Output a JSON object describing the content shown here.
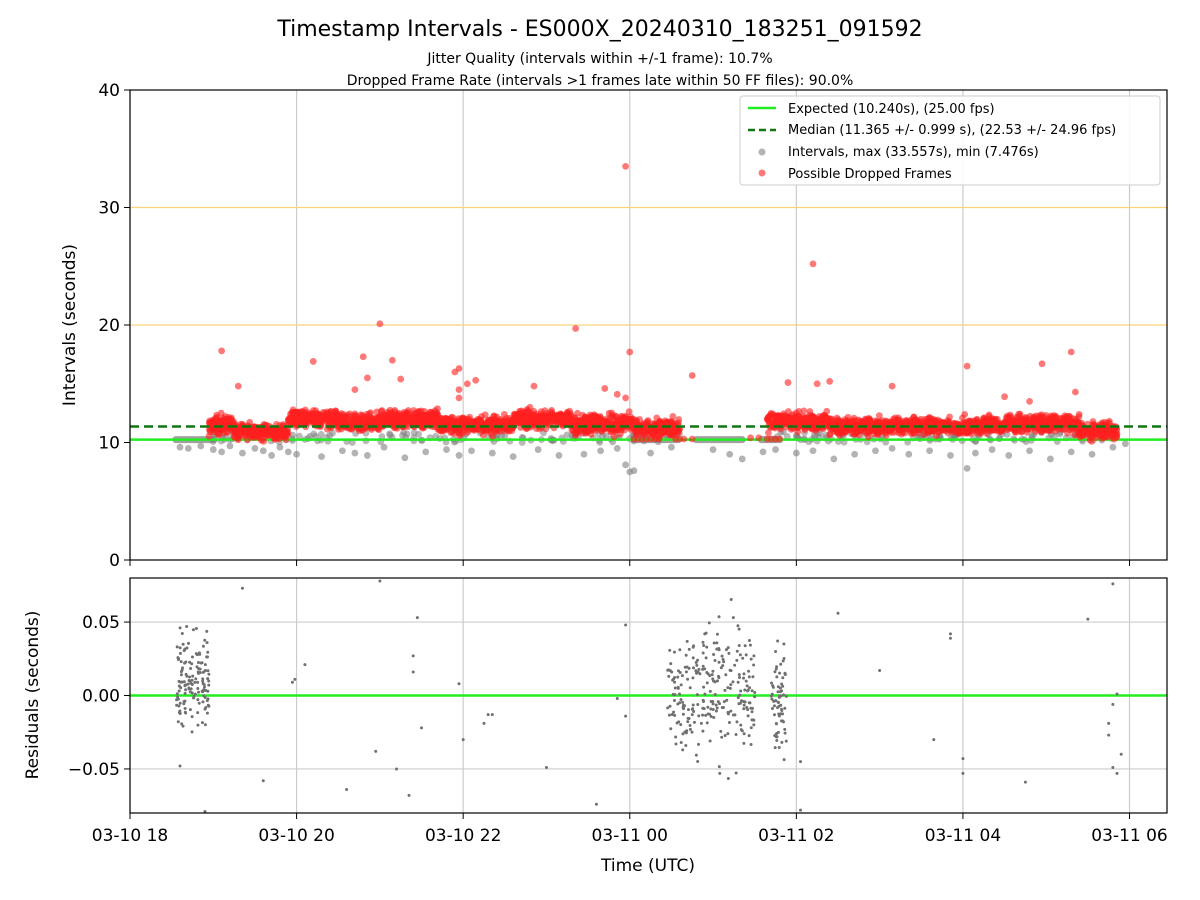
{
  "chart_data": {
    "type": "scatter",
    "title": "Timestamp Intervals - ES000X_20240310_183251_091592",
    "subtitles": [
      "Jitter Quality (intervals within +/-1 frame): 10.7%",
      "Dropped Frame Rate (intervals >1 frames late within 50 FF files): 90.0%"
    ],
    "xlabel": "Time (UTC)",
    "x_unit": "hours since 2024-03-10 18:00 UTC",
    "xlim": [
      18.0,
      30.45
    ],
    "x_ticks": [
      {
        "value": 18,
        "label": "03-10 18"
      },
      {
        "value": 20,
        "label": "03-10 20"
      },
      {
        "value": 22,
        "label": "03-10 22"
      },
      {
        "value": 24,
        "label": "03-11 00"
      },
      {
        "value": 26,
        "label": "03-11 02"
      },
      {
        "value": 28,
        "label": "03-11 04"
      },
      {
        "value": 30,
        "label": "03-11 06"
      }
    ],
    "top_panel": {
      "ylabel": "Intervals (seconds)",
      "ylim": [
        0,
        40
      ],
      "y_ticks": [
        {
          "value": 0,
          "label": "0"
        },
        {
          "value": 10,
          "label": "10"
        },
        {
          "value": 20,
          "label": "20"
        },
        {
          "value": 30,
          "label": "30"
        },
        {
          "value": 40,
          "label": "40"
        }
      ],
      "grid": "vertical",
      "reference_lines": [
        {
          "y": 20,
          "color": "#ffd27a"
        },
        {
          "y": 30,
          "color": "#ffd27a"
        }
      ],
      "expected": {
        "name": "Expected (10.240s), (25.00 fps)",
        "y": 10.24,
        "color": "#22ee22"
      },
      "median": {
        "name": "Median (11.365 +/- 0.999 s), (22.53 +/- 24.96 fps)",
        "y": 11.365,
        "color": "#117711"
      },
      "intervals": {
        "name": "Intervals, max (33.557s), min (7.476s)",
        "color": "#808080",
        "baseline_segments": [
          {
            "x_start": 18.55,
            "x_end": 18.98,
            "y": 10.24
          },
          {
            "x_start": 24.05,
            "x_end": 24.58,
            "y": 10.24
          },
          {
            "x_start": 24.8,
            "x_end": 25.35,
            "y": 10.24
          },
          {
            "x_start": 25.58,
            "x_end": 25.8,
            "y": 10.24
          }
        ],
        "outlier_points": [
          [
            18.6,
            9.6
          ],
          [
            18.7,
            9.5
          ],
          [
            18.85,
            9.7
          ],
          [
            19.0,
            9.4
          ],
          [
            19.1,
            9.2
          ],
          [
            19.2,
            9.7
          ],
          [
            19.35,
            9.1
          ],
          [
            19.5,
            9.5
          ],
          [
            19.6,
            9.3
          ],
          [
            19.7,
            8.9
          ],
          [
            19.8,
            9.6
          ],
          [
            19.9,
            9.2
          ],
          [
            20.0,
            9.0
          ],
          [
            20.3,
            8.8
          ],
          [
            20.55,
            9.3
          ],
          [
            20.7,
            9.1
          ],
          [
            20.85,
            8.9
          ],
          [
            21.05,
            9.6
          ],
          [
            21.3,
            8.7
          ],
          [
            21.55,
            9.2
          ],
          [
            21.8,
            9.4
          ],
          [
            21.95,
            8.9
          ],
          [
            22.1,
            9.3
          ],
          [
            22.35,
            9.1
          ],
          [
            22.6,
            8.8
          ],
          [
            22.9,
            9.4
          ],
          [
            23.15,
            8.9
          ],
          [
            23.45,
            9.0
          ],
          [
            23.65,
            9.3
          ],
          [
            23.85,
            9.5
          ],
          [
            23.95,
            8.1
          ],
          [
            24.0,
            7.5
          ],
          [
            24.05,
            7.6
          ],
          [
            24.25,
            9.1
          ],
          [
            24.5,
            9.6
          ],
          [
            25.0,
            9.4
          ],
          [
            25.2,
            9.0
          ],
          [
            25.35,
            8.6
          ],
          [
            25.6,
            9.2
          ],
          [
            25.75,
            9.4
          ],
          [
            26.0,
            9.1
          ],
          [
            26.2,
            9.3
          ],
          [
            26.45,
            8.6
          ],
          [
            26.7,
            9.0
          ],
          [
            26.95,
            9.3
          ],
          [
            27.15,
            9.5
          ],
          [
            27.35,
            9.0
          ],
          [
            27.6,
            9.3
          ],
          [
            27.85,
            8.9
          ],
          [
            28.05,
            7.8
          ],
          [
            28.15,
            9.1
          ],
          [
            28.35,
            9.4
          ],
          [
            28.55,
            8.9
          ],
          [
            28.8,
            9.3
          ],
          [
            29.05,
            8.6
          ],
          [
            29.3,
            9.2
          ],
          [
            29.55,
            9.0
          ],
          [
            29.8,
            9.6
          ],
          [
            29.95,
            9.9
          ]
        ]
      },
      "dropped": {
        "name": "Possible Dropped Frames",
        "color": "#ff2020",
        "band": [
          {
            "x_start": 18.95,
            "x_end": 19.25,
            "y_center": 11.5,
            "spread": 0.8
          },
          {
            "x_start": 19.25,
            "x_end": 19.9,
            "y_center": 10.9,
            "spread": 0.7
          },
          {
            "x_start": 19.9,
            "x_end": 20.5,
            "y_center": 12.0,
            "spread": 0.8
          },
          {
            "x_start": 20.5,
            "x_end": 21.0,
            "y_center": 11.7,
            "spread": 0.8
          },
          {
            "x_start": 21.0,
            "x_end": 21.7,
            "y_center": 12.0,
            "spread": 0.8
          },
          {
            "x_start": 21.7,
            "x_end": 22.6,
            "y_center": 11.5,
            "spread": 0.8
          },
          {
            "x_start": 22.6,
            "x_end": 23.3,
            "y_center": 12.0,
            "spread": 0.8
          },
          {
            "x_start": 23.3,
            "x_end": 24.05,
            "y_center": 11.6,
            "spread": 0.9
          },
          {
            "x_start": 24.05,
            "x_end": 24.6,
            "y_center": 11.2,
            "spread": 0.8
          },
          {
            "x_start": 25.65,
            "x_end": 26.4,
            "y_center": 11.8,
            "spread": 0.8
          },
          {
            "x_start": 26.4,
            "x_end": 27.4,
            "y_center": 11.4,
            "spread": 0.8
          },
          {
            "x_start": 27.4,
            "x_end": 28.5,
            "y_center": 11.4,
            "spread": 0.8
          },
          {
            "x_start": 28.5,
            "x_end": 29.4,
            "y_center": 11.6,
            "spread": 0.8
          },
          {
            "x_start": 29.4,
            "x_end": 29.85,
            "y_center": 11.0,
            "spread": 0.7
          }
        ],
        "outlier_points": [
          [
            19.1,
            17.8
          ],
          [
            19.3,
            14.8
          ],
          [
            20.2,
            16.9
          ],
          [
            20.7,
            14.5
          ],
          [
            20.8,
            17.3
          ],
          [
            20.85,
            15.5
          ],
          [
            21.15,
            17.0
          ],
          [
            21.25,
            15.4
          ],
          [
            21.0,
            20.1
          ],
          [
            21.9,
            16.0
          ],
          [
            21.95,
            16.3
          ],
          [
            21.95,
            14.5
          ],
          [
            21.95,
            13.8
          ],
          [
            22.05,
            15.0
          ],
          [
            22.15,
            15.3
          ],
          [
            22.85,
            14.8
          ],
          [
            23.35,
            19.7
          ],
          [
            23.7,
            14.6
          ],
          [
            23.85,
            14.1
          ],
          [
            23.95,
            13.8
          ],
          [
            23.95,
            33.5
          ],
          [
            24.0,
            17.7
          ],
          [
            24.75,
            15.7
          ],
          [
            25.9,
            15.1
          ],
          [
            26.2,
            25.2
          ],
          [
            26.25,
            15.0
          ],
          [
            26.4,
            15.2
          ],
          [
            27.15,
            14.8
          ],
          [
            28.05,
            16.5
          ],
          [
            28.5,
            13.9
          ],
          [
            28.8,
            13.5
          ],
          [
            28.95,
            16.7
          ],
          [
            29.3,
            17.7
          ],
          [
            29.35,
            14.3
          ]
        ],
        "isolated_low_points": [
          [
            24.05,
            10.3
          ],
          [
            24.1,
            10.3
          ],
          [
            24.15,
            10.3
          ],
          [
            24.2,
            10.3
          ],
          [
            24.25,
            10.3
          ],
          [
            24.3,
            10.3
          ],
          [
            24.35,
            10.3
          ],
          [
            24.55,
            10.3
          ],
          [
            24.6,
            10.3
          ],
          [
            24.65,
            10.3
          ],
          [
            24.75,
            10.3
          ],
          [
            25.65,
            10.3
          ],
          [
            25.7,
            10.3
          ],
          [
            25.75,
            10.3
          ],
          [
            25.8,
            10.3
          ],
          [
            25.45,
            10.4
          ],
          [
            25.55,
            10.4
          ]
        ]
      }
    },
    "bottom_panel": {
      "ylabel": "Residuals (seconds)",
      "ylim": [
        -0.08,
        0.08
      ],
      "y_ticks": [
        {
          "value": 0.05,
          "label": "0.05"
        },
        {
          "value": 0.0,
          "label": "0.00"
        },
        {
          "value": -0.05,
          "label": "−0.05"
        }
      ],
      "grid": "both",
      "zero_line_color": "#22ee22",
      "point_color": "#707070",
      "clusters": [
        {
          "x_start": 18.55,
          "x_end": 18.95,
          "y_center": 0.01,
          "spread": 0.025,
          "count": 140
        },
        {
          "x_start": 24.45,
          "x_end": 25.5,
          "y_center": 0.005,
          "spread": 0.035,
          "count": 260
        },
        {
          "x_start": 25.7,
          "x_end": 25.88,
          "y_center": 0.0,
          "spread": 0.03,
          "count": 70
        }
      ],
      "points": [
        [
          18.6,
          -0.048
        ],
        [
          18.9,
          -0.079
        ],
        [
          19.35,
          0.073
        ],
        [
          19.6,
          -0.058
        ],
        [
          19.95,
          0.009
        ],
        [
          19.98,
          0.011
        ],
        [
          20.1,
          0.021
        ],
        [
          20.6,
          -0.064
        ],
        [
          20.95,
          -0.038
        ],
        [
          21.0,
          0.078
        ],
        [
          21.2,
          -0.05
        ],
        [
          21.35,
          -0.068
        ],
        [
          21.4,
          0.027
        ],
        [
          21.4,
          0.016
        ],
        [
          21.45,
          0.053
        ],
        [
          21.5,
          -0.022
        ],
        [
          21.95,
          0.008
        ],
        [
          22.0,
          -0.03
        ],
        [
          22.25,
          -0.019
        ],
        [
          22.3,
          -0.013
        ],
        [
          22.35,
          -0.013
        ],
        [
          23.0,
          -0.049
        ],
        [
          23.6,
          -0.074
        ],
        [
          23.85,
          -0.002
        ],
        [
          23.95,
          0.048
        ],
        [
          23.95,
          -0.014
        ],
        [
          26.05,
          -0.078
        ],
        [
          26.05,
          -0.045
        ],
        [
          26.5,
          0.056
        ],
        [
          27.0,
          0.017
        ],
        [
          27.65,
          -0.03
        ],
        [
          27.85,
          0.042
        ],
        [
          27.85,
          0.039
        ],
        [
          28.0,
          -0.043
        ],
        [
          28.0,
          -0.053
        ],
        [
          28.75,
          -0.059
        ],
        [
          29.5,
          0.052
        ],
        [
          29.8,
          0.076
        ],
        [
          29.75,
          -0.019
        ],
        [
          29.75,
          -0.027
        ],
        [
          29.8,
          -0.006
        ],
        [
          29.8,
          -0.049
        ],
        [
          29.85,
          0.001
        ],
        [
          29.85,
          -0.053
        ],
        [
          29.9,
          -0.04
        ]
      ]
    }
  }
}
